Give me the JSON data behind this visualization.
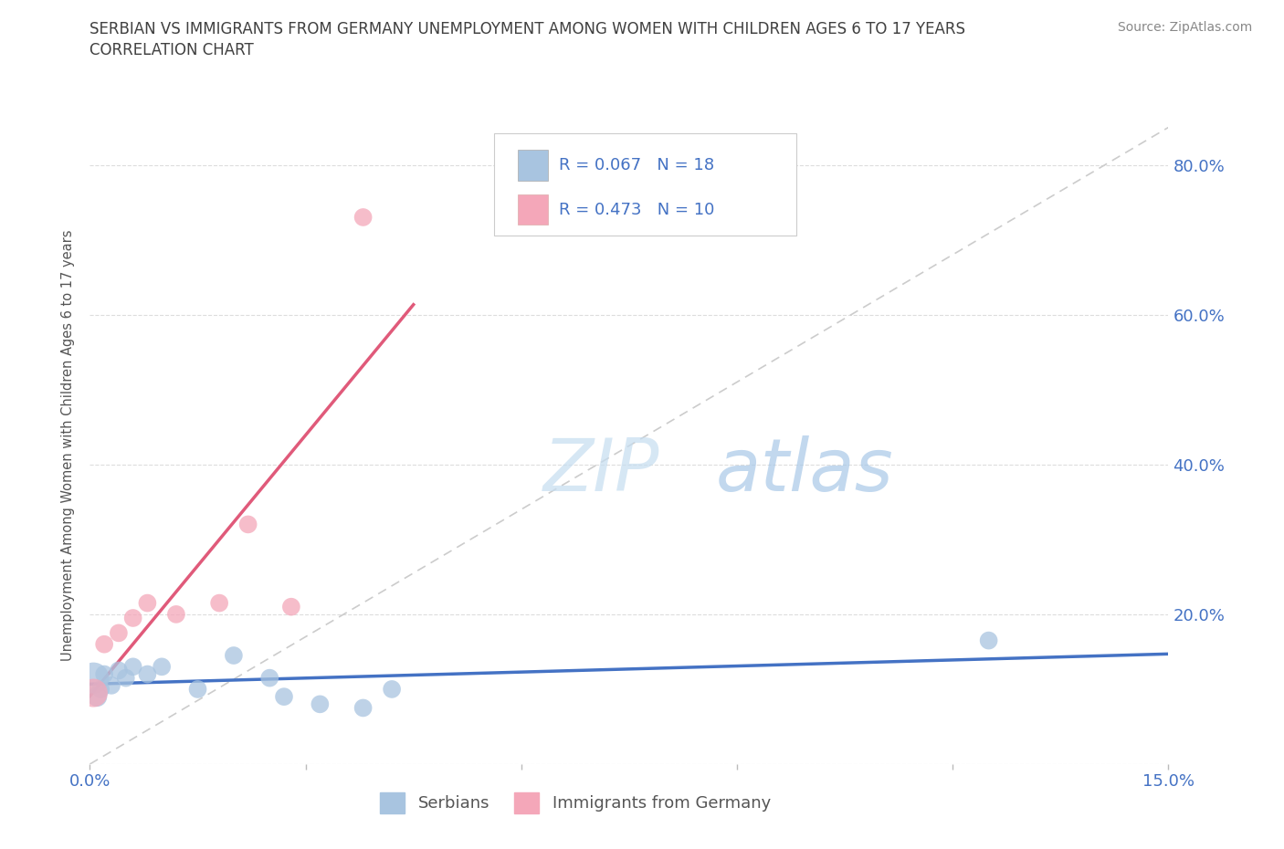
{
  "title_line1": "SERBIAN VS IMMIGRANTS FROM GERMANY UNEMPLOYMENT AMONG WOMEN WITH CHILDREN AGES 6 TO 17 YEARS",
  "title_line2": "CORRELATION CHART",
  "source": "Source: ZipAtlas.com",
  "ylabel": "Unemployment Among Women with Children Ages 6 to 17 years",
  "xlim": [
    0.0,
    0.15
  ],
  "ylim": [
    0.0,
    0.85
  ],
  "xticks": [
    0.0,
    0.03,
    0.06,
    0.09,
    0.12,
    0.15
  ],
  "xtick_labels": [
    "0.0%",
    "",
    "",
    "",
    "",
    "15.0%"
  ],
  "ytick_right": [
    0.0,
    0.2,
    0.4,
    0.6,
    0.8
  ],
  "ytick_right_labels": [
    "",
    "20.0%",
    "40.0%",
    "60.0%",
    "80.0%"
  ],
  "serbian_x": [
    0.0005,
    0.001,
    0.0015,
    0.002,
    0.003,
    0.004,
    0.005,
    0.006,
    0.008,
    0.01,
    0.015,
    0.02,
    0.025,
    0.027,
    0.032,
    0.038,
    0.042,
    0.125
  ],
  "serbian_y": [
    0.115,
    0.09,
    0.1,
    0.12,
    0.105,
    0.125,
    0.115,
    0.13,
    0.12,
    0.13,
    0.1,
    0.145,
    0.115,
    0.09,
    0.08,
    0.075,
    0.1,
    0.165
  ],
  "serbian_sizes": [
    600,
    250,
    200,
    200,
    200,
    200,
    200,
    200,
    200,
    200,
    200,
    200,
    200,
    200,
    200,
    200,
    200,
    200
  ],
  "german_x": [
    0.0005,
    0.002,
    0.004,
    0.006,
    0.008,
    0.012,
    0.018,
    0.022,
    0.028,
    0.038
  ],
  "german_y": [
    0.095,
    0.16,
    0.175,
    0.195,
    0.215,
    0.2,
    0.215,
    0.32,
    0.21,
    0.73
  ],
  "german_sizes": [
    500,
    200,
    200,
    200,
    200,
    200,
    200,
    200,
    200,
    200
  ],
  "serbian_color": "#a8c4e0",
  "german_color": "#f4a7b9",
  "serbian_line_color": "#4472c4",
  "german_line_color": "#e05a7a",
  "diagonal_color": "#cccccc",
  "r_serbian": 0.067,
  "n_serbian": 18,
  "r_german": 0.473,
  "n_german": 10,
  "watermark_zip": "ZIP",
  "watermark_atlas": "atlas",
  "legend_label_serbian": "Serbians",
  "legend_label_german": "Immigrants from Germany",
  "title_color": "#404040",
  "axis_color": "#4472c4"
}
